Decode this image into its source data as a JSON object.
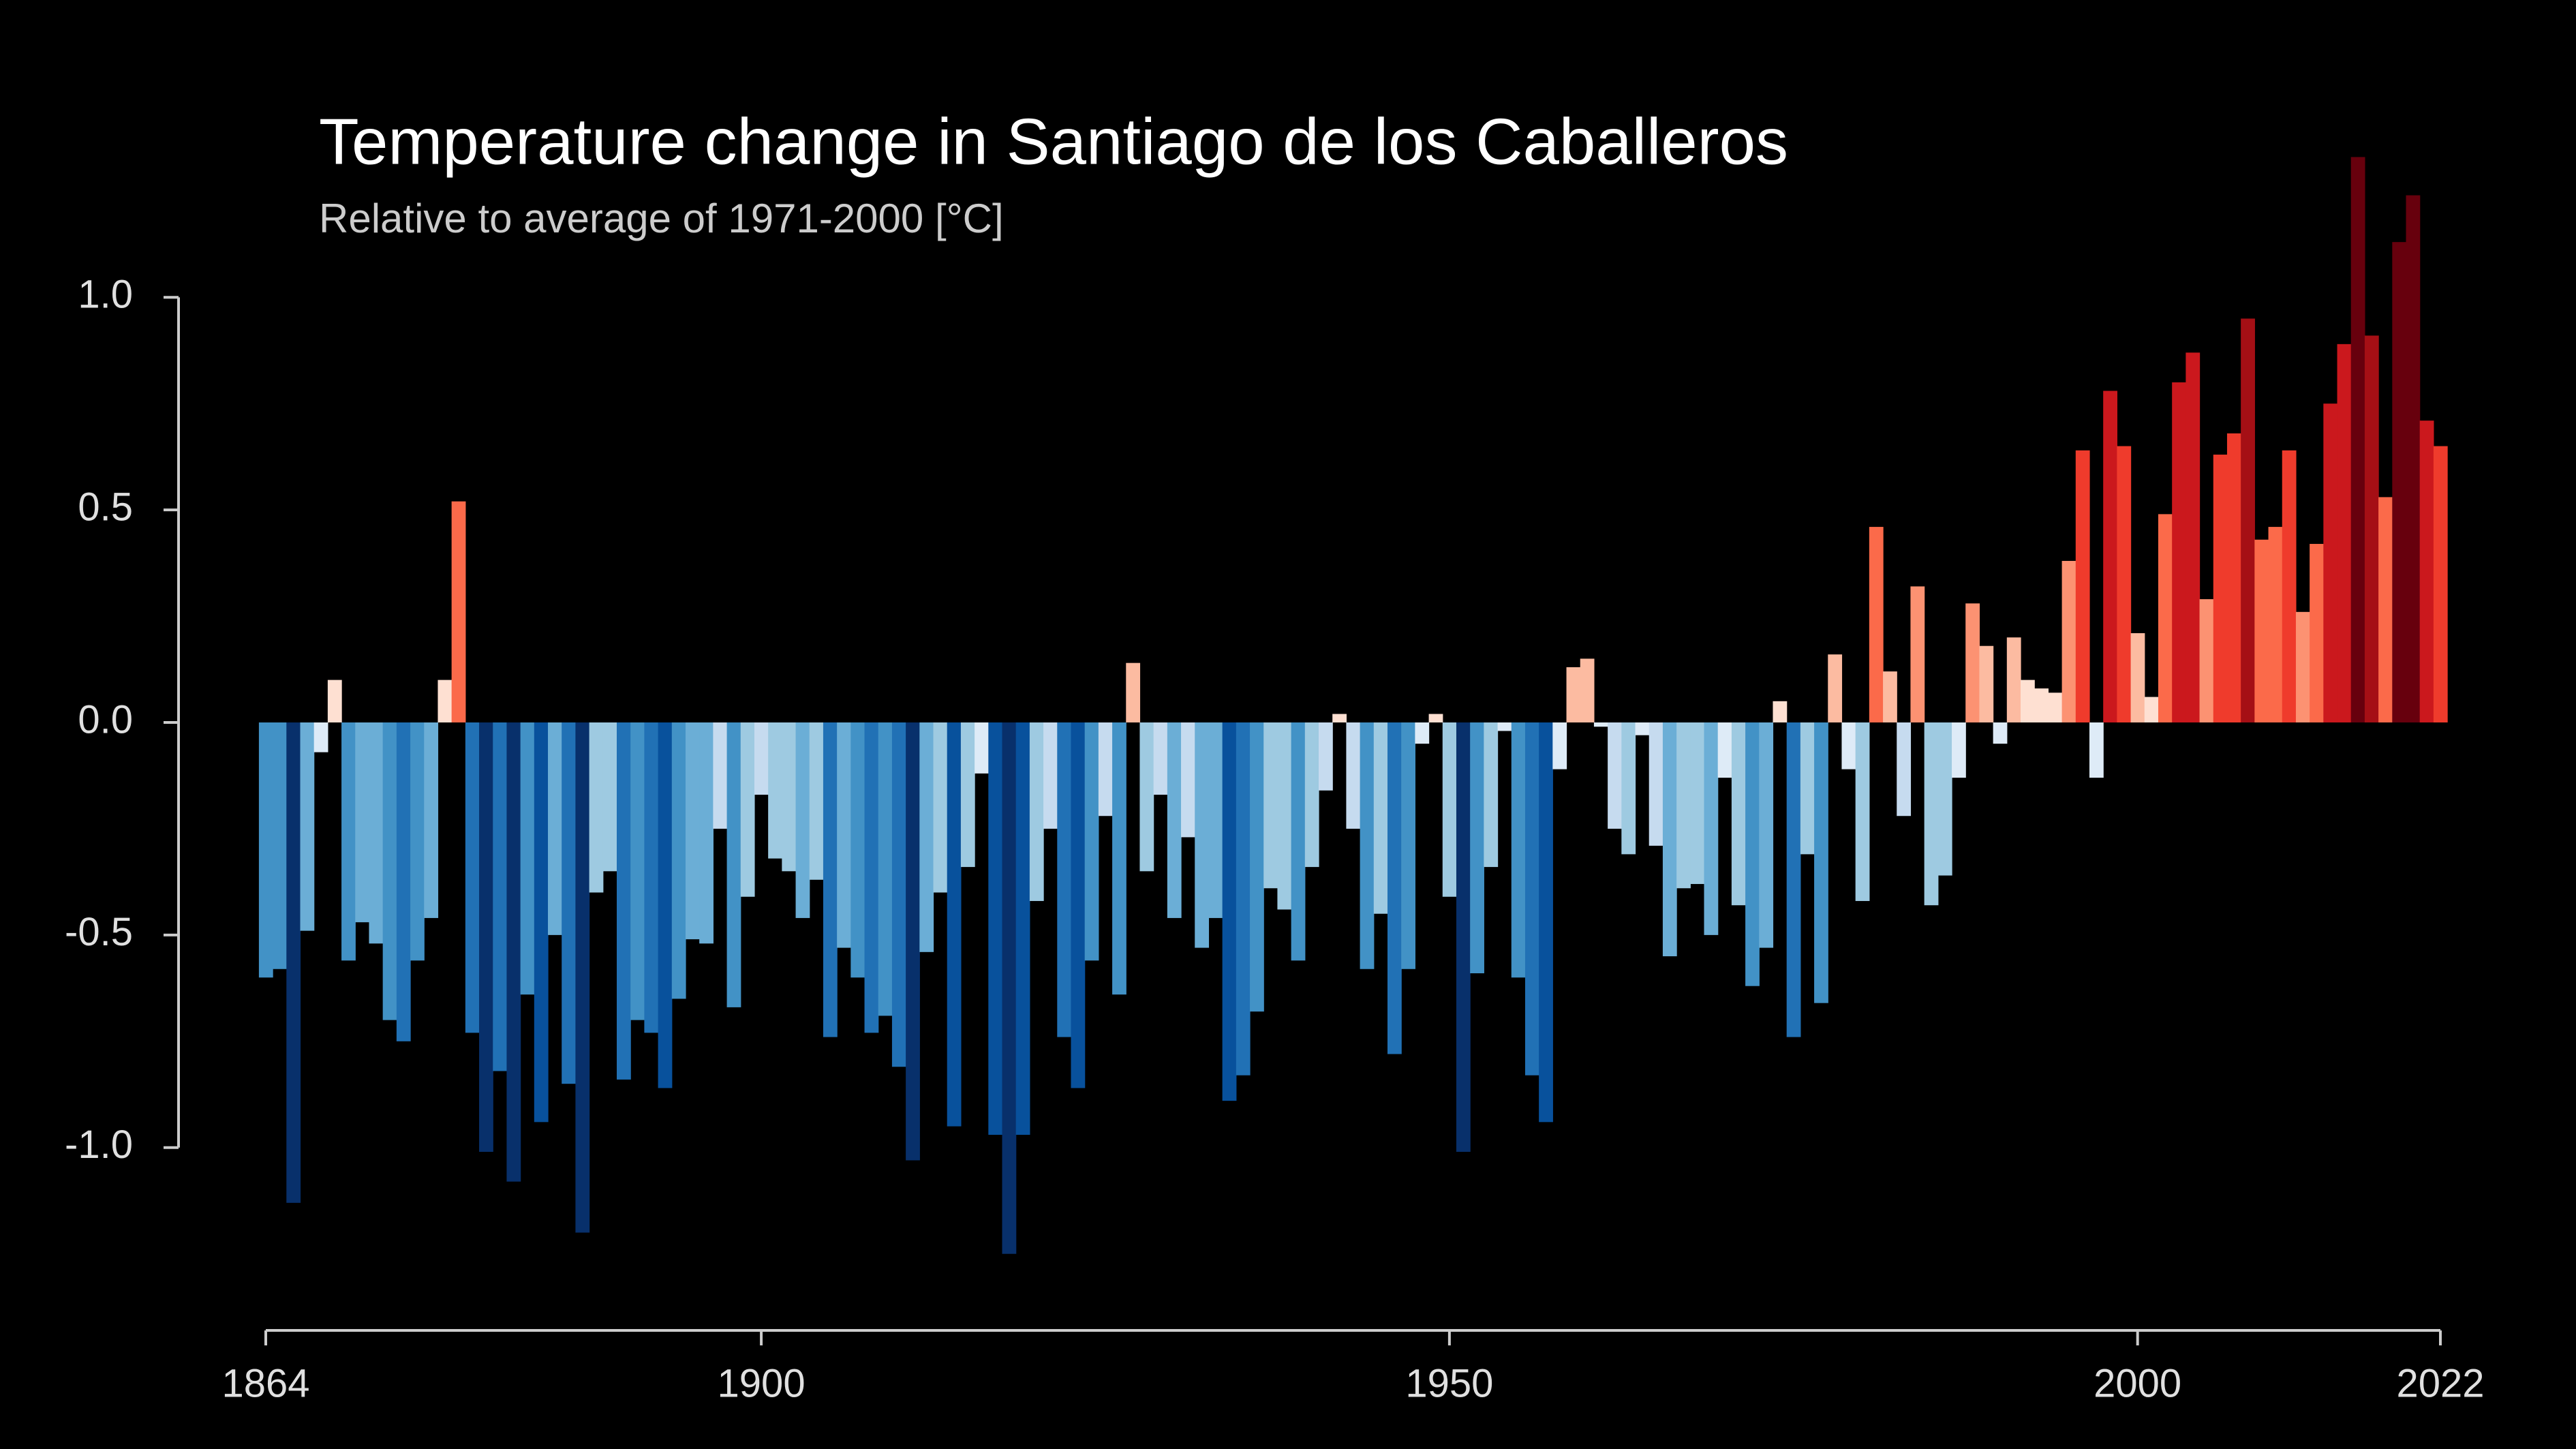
{
  "chart_data": {
    "type": "bar",
    "title": "Temperature change in Santiago de los Caballeros",
    "subtitle": "Relative to average of 1971-2000  [°C]",
    "x": [
      1864,
      1865,
      1866,
      1867,
      1868,
      1869,
      1870,
      1871,
      1872,
      1873,
      1874,
      1875,
      1876,
      1877,
      1878,
      1879,
      1880,
      1881,
      1882,
      1883,
      1884,
      1885,
      1886,
      1887,
      1888,
      1889,
      1890,
      1891,
      1892,
      1893,
      1894,
      1895,
      1896,
      1897,
      1898,
      1899,
      1900,
      1901,
      1902,
      1903,
      1904,
      1905,
      1906,
      1907,
      1908,
      1909,
      1910,
      1911,
      1912,
      1913,
      1914,
      1915,
      1916,
      1917,
      1918,
      1919,
      1920,
      1921,
      1922,
      1923,
      1924,
      1925,
      1926,
      1927,
      1928,
      1929,
      1930,
      1931,
      1932,
      1933,
      1934,
      1935,
      1936,
      1937,
      1938,
      1939,
      1940,
      1941,
      1942,
      1943,
      1944,
      1945,
      1946,
      1947,
      1948,
      1949,
      1950,
      1951,
      1952,
      1953,
      1954,
      1955,
      1956,
      1957,
      1958,
      1959,
      1960,
      1961,
      1962,
      1963,
      1964,
      1965,
      1966,
      1967,
      1968,
      1969,
      1970,
      1971,
      1972,
      1973,
      1974,
      1975,
      1976,
      1977,
      1978,
      1979,
      1980,
      1981,
      1982,
      1983,
      1984,
      1985,
      1986,
      1987,
      1988,
      1989,
      1990,
      1991,
      1992,
      1993,
      1994,
      1995,
      1996,
      1997,
      1998,
      1999,
      2000,
      2001,
      2002,
      2003,
      2004,
      2005,
      2006,
      2007,
      2008,
      2009,
      2010,
      2011,
      2012,
      2013,
      2014,
      2015,
      2016,
      2017,
      2018,
      2019,
      2020,
      2021,
      2022
    ],
    "values": [
      -0.6,
      -0.58,
      -1.13,
      -0.49,
      -0.07,
      0.1,
      -0.56,
      -0.47,
      -0.52,
      -0.7,
      -0.75,
      -0.56,
      -0.46,
      0.1,
      0.52,
      -0.73,
      -1.01,
      -0.82,
      -1.08,
      -0.64,
      -0.94,
      -0.5,
      -0.85,
      -1.2,
      -0.4,
      -0.35,
      -0.84,
      -0.7,
      -0.73,
      -0.86,
      -0.65,
      -0.51,
      -0.52,
      -0.25,
      -0.67,
      -0.41,
      -0.17,
      -0.32,
      -0.35,
      -0.46,
      -0.37,
      -0.74,
      -0.53,
      -0.6,
      -0.73,
      -0.69,
      -0.81,
      -1.03,
      -0.54,
      -0.4,
      -0.95,
      -0.34,
      -0.12,
      -0.97,
      -1.25,
      -0.97,
      -0.42,
      -0.25,
      -0.74,
      -0.86,
      -0.56,
      -0.22,
      -0.64,
      0.14,
      -0.35,
      -0.17,
      -0.46,
      -0.27,
      -0.53,
      -0.46,
      -0.89,
      -0.83,
      -0.68,
      -0.39,
      -0.44,
      -0.56,
      -0.34,
      -0.16,
      0.02,
      -0.25,
      -0.58,
      -0.45,
      -0.78,
      -0.58,
      -0.05,
      0.02,
      -0.41,
      -1.01,
      -0.59,
      -0.34,
      -0.02,
      -0.6,
      -0.83,
      -0.94,
      -0.11,
      0.13,
      0.15,
      -0.01,
      -0.25,
      -0.31,
      -0.03,
      -0.29,
      -0.55,
      -0.39,
      -0.38,
      -0.5,
      -0.13,
      -0.43,
      -0.62,
      -0.53,
      0.05,
      -0.74,
      -0.31,
      -0.66,
      0.16,
      -0.11,
      -0.42,
      0.46,
      0.12,
      -0.22,
      0.32,
      -0.43,
      -0.36,
      -0.13,
      0.28,
      0.18,
      -0.05,
      0.2,
      0.1,
      0.08,
      0.07,
      0.38,
      0.64,
      -0.13,
      0.78,
      0.65,
      0.21,
      0.06,
      0.49,
      0.8,
      0.87,
      0.29,
      0.63,
      0.68,
      0.95,
      0.43,
      0.46,
      0.64,
      0.26,
      0.42,
      0.75,
      0.89,
      1.33,
      0.91,
      0.53,
      1.13,
      1.24,
      0.71,
      0.65
    ],
    "xlim": [
      1864,
      2022
    ],
    "xticks": [
      1864,
      1900,
      1950,
      2000,
      2022
    ],
    "ylim": [
      -1.6,
      1.6
    ],
    "yticks": [
      {
        "value": -1,
        "label": "-1.0"
      },
      -0.5,
      {
        "value": 0,
        "label": "0.0"
      },
      0.5,
      {
        "value": 1,
        "label": "1.0"
      }
    ]
  }
}
